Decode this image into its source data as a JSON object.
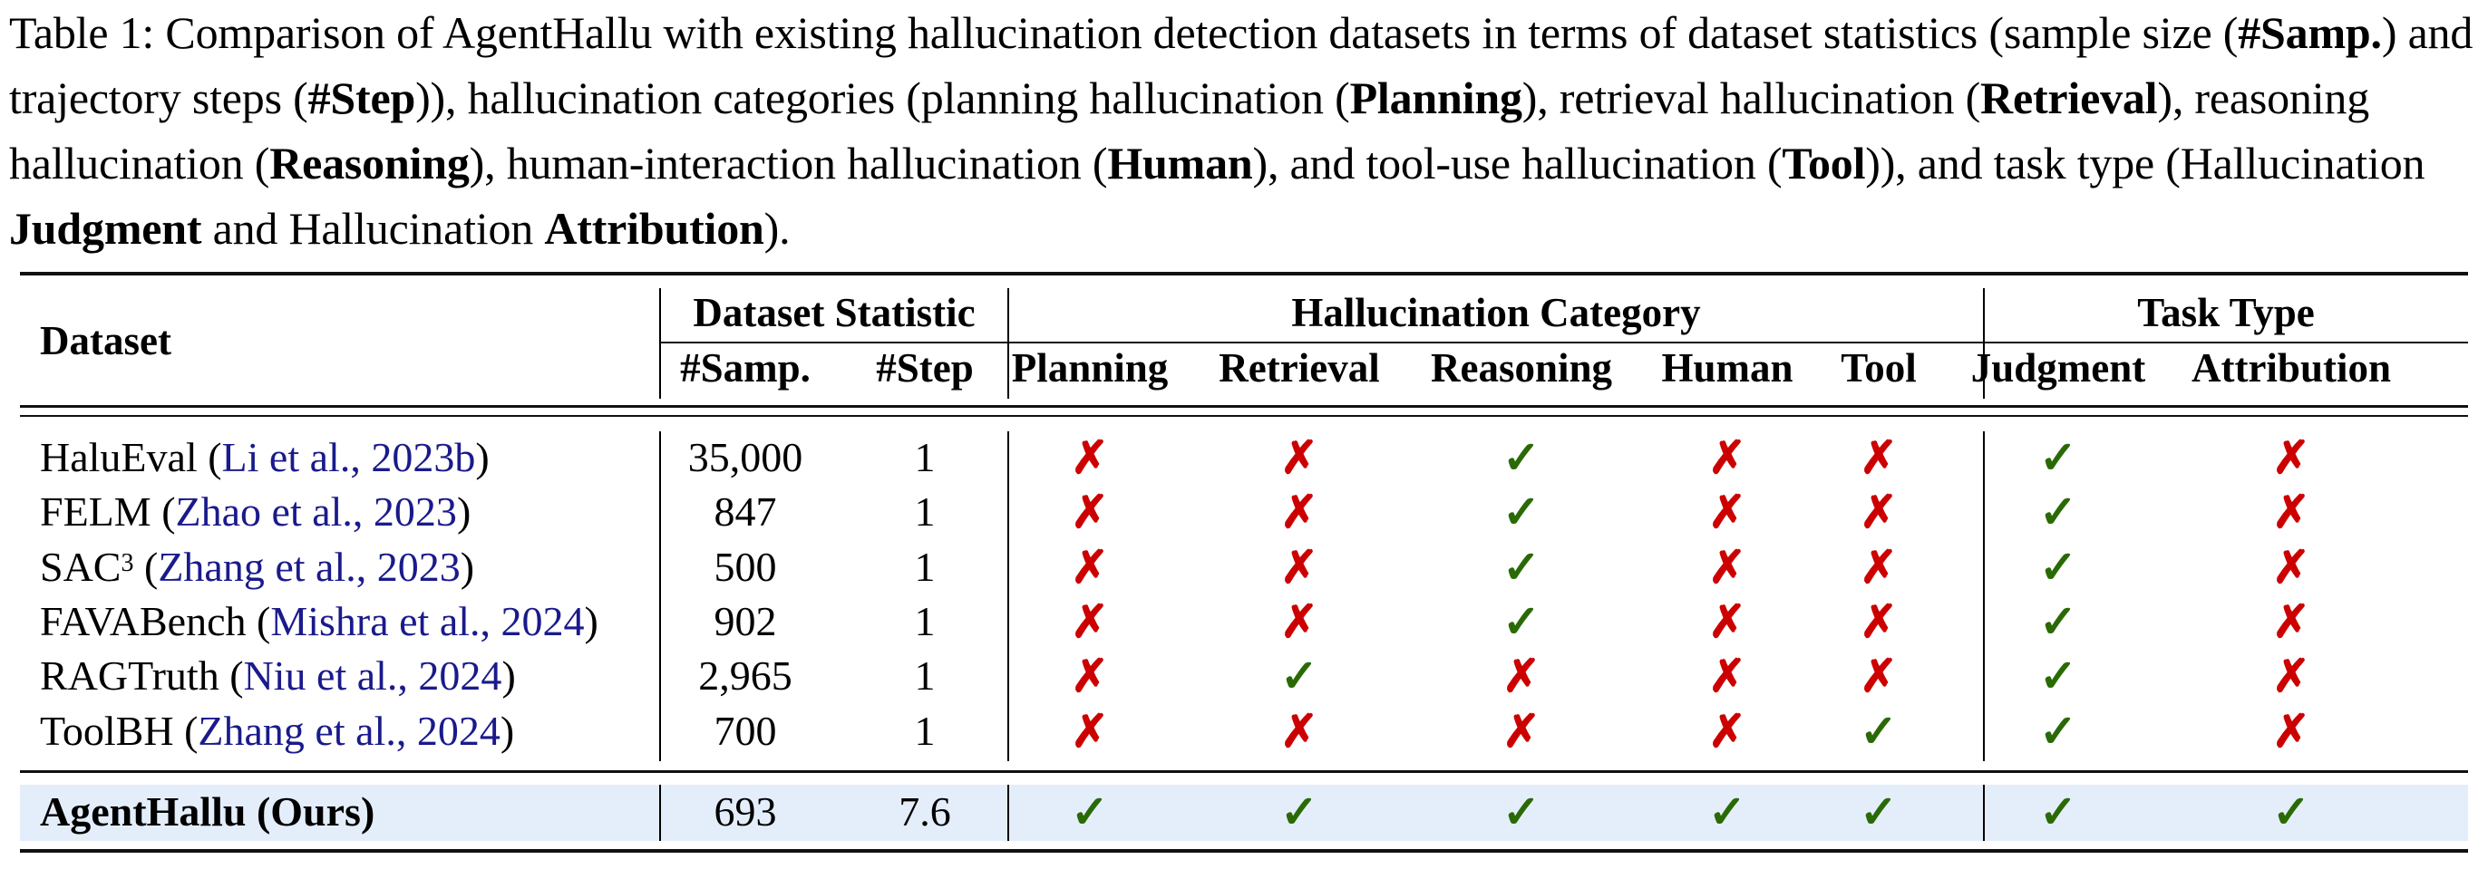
{
  "caption": {
    "label": "Table 1:",
    "segments": [
      {
        "t": " Comparison of AgentHallu with existing hallucination detection datasets in terms of dataset statistics (sample size (",
        "b": false
      },
      {
        "t": "#Samp.",
        "b": true
      },
      {
        "t": ") and trajectory steps (",
        "b": false
      },
      {
        "t": "#Step",
        "b": true
      },
      {
        "t": ")), hallucination categories (planning hallucination (",
        "b": false
      },
      {
        "t": "Planning",
        "b": true
      },
      {
        "t": "), retrieval hallucination (",
        "b": false
      },
      {
        "t": "Retrieval",
        "b": true
      },
      {
        "t": "), reasoning hallucination (",
        "b": false
      },
      {
        "t": "Reasoning",
        "b": true
      },
      {
        "t": "), human-interaction hallucination (",
        "b": false
      },
      {
        "t": "Human",
        "b": true
      },
      {
        "t": "), and tool-use hallucination (",
        "b": false
      },
      {
        "t": "Tool",
        "b": true
      },
      {
        "t": ")), and task type (Hallucination ",
        "b": false
      },
      {
        "t": "Judgment",
        "b": true
      },
      {
        "t": " and Hallucination ",
        "b": false
      },
      {
        "t": "Attribution",
        "b": true
      },
      {
        "t": ").",
        "b": false
      }
    ]
  },
  "table": {
    "header": {
      "dataset": "Dataset",
      "group_stat": "Dataset Statistic",
      "group_cat": "Hallucination Category",
      "group_task": "Task Type",
      "columns": [
        "#Samp.",
        "#Step",
        "Planning",
        "Retrieval",
        "Reasoning",
        "Human",
        "Tool",
        "Judgment",
        "Attribution"
      ]
    },
    "rows": [
      {
        "name": "HaluEval",
        "sup": "",
        "cite": "Li et al., 2023b",
        "samp": "35,000",
        "step": "1",
        "marks": [
          "no",
          "no",
          "yes",
          "no",
          "no",
          "yes",
          "no"
        ]
      },
      {
        "name": "FELM",
        "sup": "",
        "cite": "Zhao et al., 2023",
        "samp": "847",
        "step": "1",
        "marks": [
          "no",
          "no",
          "yes",
          "no",
          "no",
          "yes",
          "no"
        ]
      },
      {
        "name": "SAC",
        "sup": "3",
        "cite": "Zhang et al., 2023",
        "samp": "500",
        "step": "1",
        "marks": [
          "no",
          "no",
          "yes",
          "no",
          "no",
          "yes",
          "no"
        ]
      },
      {
        "name": "FAVABench",
        "sup": "",
        "cite": "Mishra et al., 2024",
        "samp": "902",
        "step": "1",
        "marks": [
          "no",
          "no",
          "yes",
          "no",
          "no",
          "yes",
          "no"
        ]
      },
      {
        "name": "RAGTruth",
        "sup": "",
        "cite": "Niu et al., 2024",
        "samp": "2,965",
        "step": "1",
        "marks": [
          "no",
          "yes",
          "no",
          "no",
          "no",
          "yes",
          "no"
        ]
      },
      {
        "name": "ToolBH",
        "sup": "",
        "cite": "Zhang et al., 2024",
        "samp": "700",
        "step": "1",
        "marks": [
          "no",
          "no",
          "no",
          "no",
          "yes",
          "yes",
          "no"
        ]
      }
    ],
    "ours": {
      "name": "AgentHallu (Ours)",
      "samp": "693",
      "step": "7.6",
      "marks": [
        "yes",
        "yes",
        "yes",
        "yes",
        "yes",
        "yes",
        "yes"
      ]
    },
    "symbols": {
      "yes": "✓",
      "no": "✗"
    },
    "colors": {
      "yes": "#2a6a05",
      "no": "#cc0000",
      "cite": "#1a1a8c",
      "highlight": "#e4eefb"
    }
  }
}
